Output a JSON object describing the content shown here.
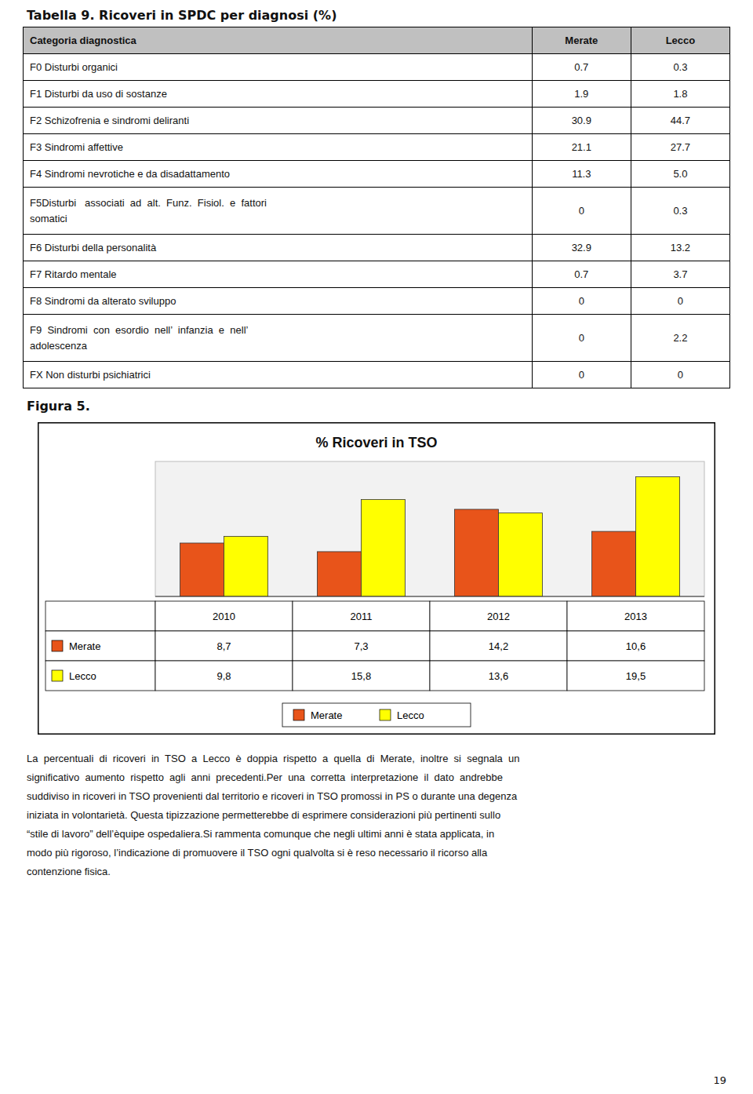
{
  "chart_data": {
    "type": "bar",
    "title": "% Ricoveri in TSO",
    "categories": [
      "2010",
      "2011",
      "2012",
      "2013"
    ],
    "series": [
      {
        "name": "Merate",
        "color": "#E8541A",
        "values": [
          8.7,
          7.3,
          14.2,
          10.6
        ],
        "value_labels": [
          "8,7",
          "7,3",
          "14,2",
          "10,6"
        ]
      },
      {
        "name": "Lecco",
        "color": "#FFFF00",
        "values": [
          9.8,
          15.8,
          13.6,
          19.5
        ],
        "value_labels": [
          "9,8",
          "15,8",
          "13,6",
          "19,5"
        ]
      }
    ],
    "ylim": [
      0,
      22
    ],
    "yticks": [],
    "grid": false,
    "legend": "bottom"
  },
  "table": {
    "title": "Tabella 9. Ricoveri in SPDC per diagnosi (%)",
    "headers": [
      "Categoria diagnostica",
      "Merate",
      "Lecco"
    ],
    "rows": [
      [
        "F0 Disturbi organici",
        "0.7",
        "0.3"
      ],
      [
        "F1 Disturbi da uso di sostanze",
        "1.9",
        "1.8"
      ],
      [
        "F2 Schizofrenia e sindromi deliranti",
        "30.9",
        "44.7"
      ],
      [
        "F3 Sindromi affettive",
        "21.1",
        "27.7"
      ],
      [
        "F4 Sindromi nevrotiche e da disadattamento",
        "11.3",
        "5.0"
      ],
      [
        "F5Disturbi   associati  ad  alt.  Funz.  Fisiol.  e  fattori\nsomatici",
        "0",
        "0.3"
      ],
      [
        "F6 Disturbi della personalità",
        "32.9",
        "13.2"
      ],
      [
        "F7 Ritardo mentale",
        "0.7",
        "3.7"
      ],
      [
        "F8 Sindromi da alterato sviluppo",
        "0",
        "0"
      ],
      [
        "F9  Sindromi  con  esordio  nell’  infanzia  e  nell’\nadolescenza",
        "0",
        "2.2"
      ],
      [
        "FX Non disturbi psichiatrici",
        "0",
        "0"
      ]
    ]
  },
  "figure_label": "Figura 5.",
  "paragraph": [
    "La  percentuali  di  ricoveri  in  TSO  a  Lecco  è  doppia  rispetto  a  quella  di  Merate,  inoltre  si  segnala  un",
    "significativo  aumento  rispetto  agli  anni  precedenti.Per  una  corretta  interpretazione  il  dato  andrebbe",
    "suddiviso in ricoveri in TSO provenienti dal territorio e ricoveri in TSO promossi in PS o durante una degenza",
    "iniziata in volontarietà. Questa tipizzazione permetterebbe di esprimere considerazioni più pertinenti sullo",
    "“stile di lavoro” dell’èquipe ospedaliera.Si rammenta comunque che negli ultimi anni è stata applicata, in",
    "modo più rigoroso, l’indicazione di promuovere il TSO ogni qualvolta si è reso necessario il ricorso alla",
    "contenzione fisica."
  ],
  "page_number": "19"
}
